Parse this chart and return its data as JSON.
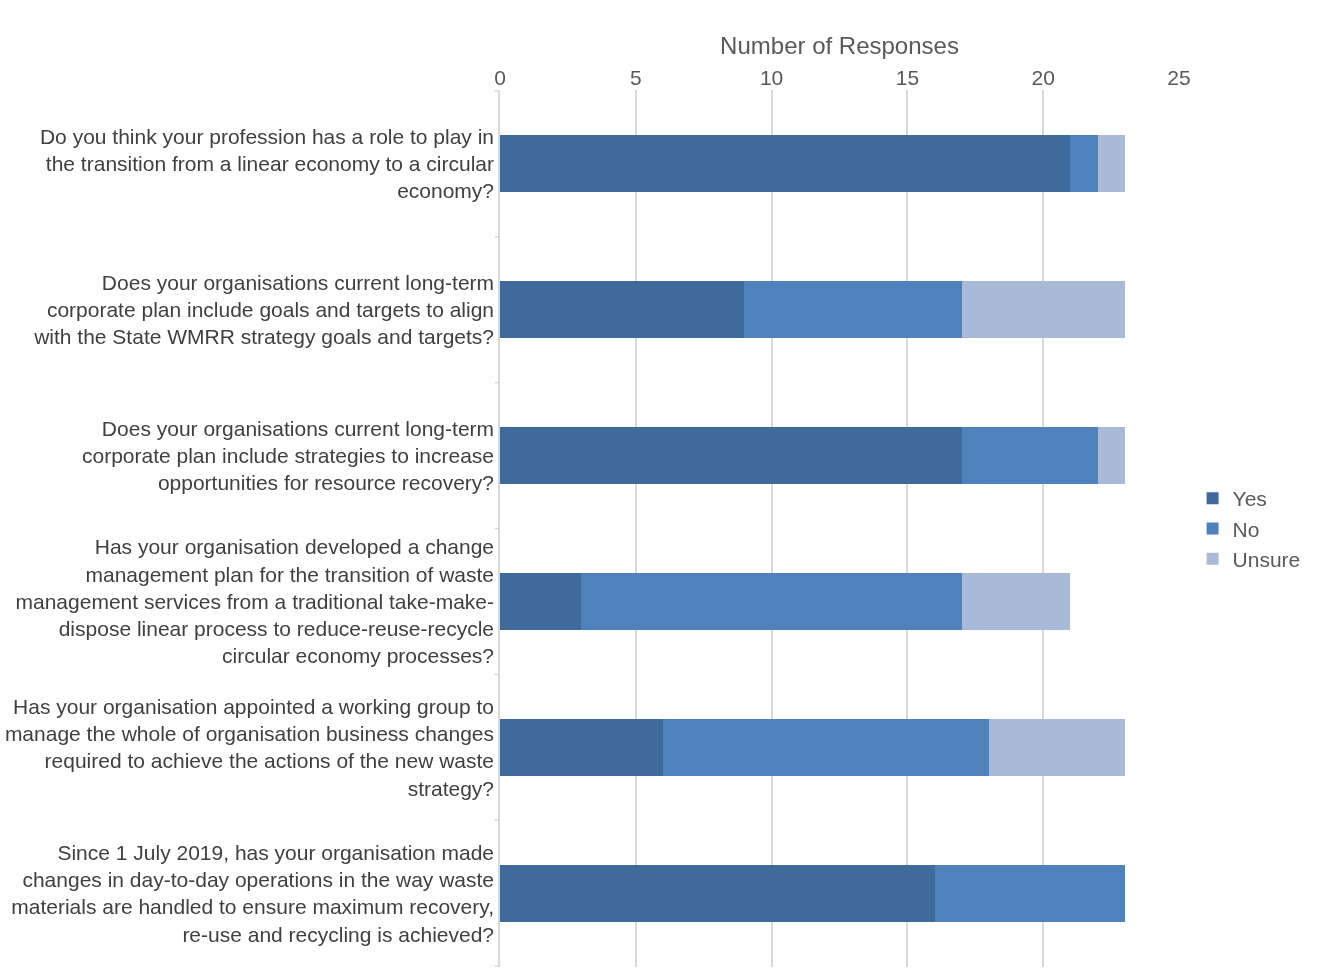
{
  "chart_data": {
    "type": "bar",
    "orientation": "horizontal",
    "stacked": true,
    "xlabel": "Number of Responses",
    "categories": [
      "Do you think your profession has a role to play in the transition from a linear economy to a circular economy?",
      "Does your organisations current long-term corporate plan include goals and targets to align with the State WMRR strategy goals and targets?",
      "Does your organisations current long-term corporate plan include strategies to increase opportunities for resource recovery?",
      "Has your organisation developed a change management plan for the transition of waste management services from a traditional take-make-dispose linear process to reduce-reuse-recycle circular economy processes?",
      "Has your organisation appointed a working group to manage the whole of organisation business changes required to achieve the actions of the new waste strategy?",
      "Since 1 July 2019, has your organisation made changes in day-to-day operations in the way waste materials are handled to ensure maximum recovery, re-use and recycling is achieved?"
    ],
    "series": [
      {
        "name": "Yes",
        "color": "#3f6a9b",
        "values": [
          21,
          9,
          17,
          3,
          6,
          16
        ]
      },
      {
        "name": "No",
        "color": "#4f81bd",
        "values": [
          1,
          8,
          5,
          14,
          12,
          7
        ]
      },
      {
        "name": "Unsure",
        "color": "#a9bad8",
        "values": [
          1,
          6,
          1,
          4,
          5,
          0
        ]
      }
    ],
    "xlim": [
      0,
      25
    ],
    "xticks": [
      0,
      5,
      10,
      15,
      20,
      25
    ],
    "grid": "x",
    "legend": "right"
  }
}
